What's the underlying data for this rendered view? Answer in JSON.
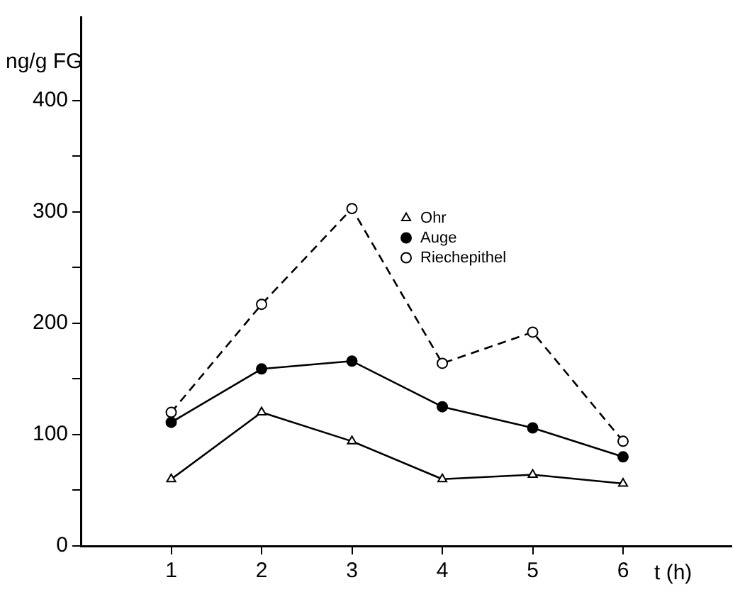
{
  "chart_data": {
    "type": "line",
    "xlabel": "t (h)",
    "ylabel": "ng/g FG",
    "x": [
      1,
      2,
      3,
      4,
      5,
      6
    ],
    "xlim": [
      0,
      7.2
    ],
    "xticks": [
      1,
      2,
      3,
      4,
      5,
      6
    ],
    "ylim": [
      0,
      475
    ],
    "yticks": [
      0,
      {
        "value": 50,
        "label": null
      },
      100,
      {
        "value": 150,
        "label": null
      },
      200,
      {
        "value": 250,
        "label": null
      },
      300,
      {
        "value": 350,
        "label": null
      },
      400
    ],
    "grid": false,
    "legend": "top right",
    "series": [
      {
        "name": "Ohr",
        "color": "#000000",
        "marker": "triangle",
        "line_style": "solid",
        "values": [
          60,
          120,
          94,
          60,
          64,
          56
        ]
      },
      {
        "name": "Auge",
        "color": "#000000",
        "marker": "circle",
        "line_style": "solid",
        "values": [
          111,
          159,
          166,
          125,
          106,
          80
        ]
      },
      {
        "name": "Riechepithel",
        "color": "#000000",
        "marker": "open circle",
        "line_style": "dashed",
        "values": [
          120,
          217,
          303,
          164,
          192,
          94
        ]
      }
    ]
  }
}
